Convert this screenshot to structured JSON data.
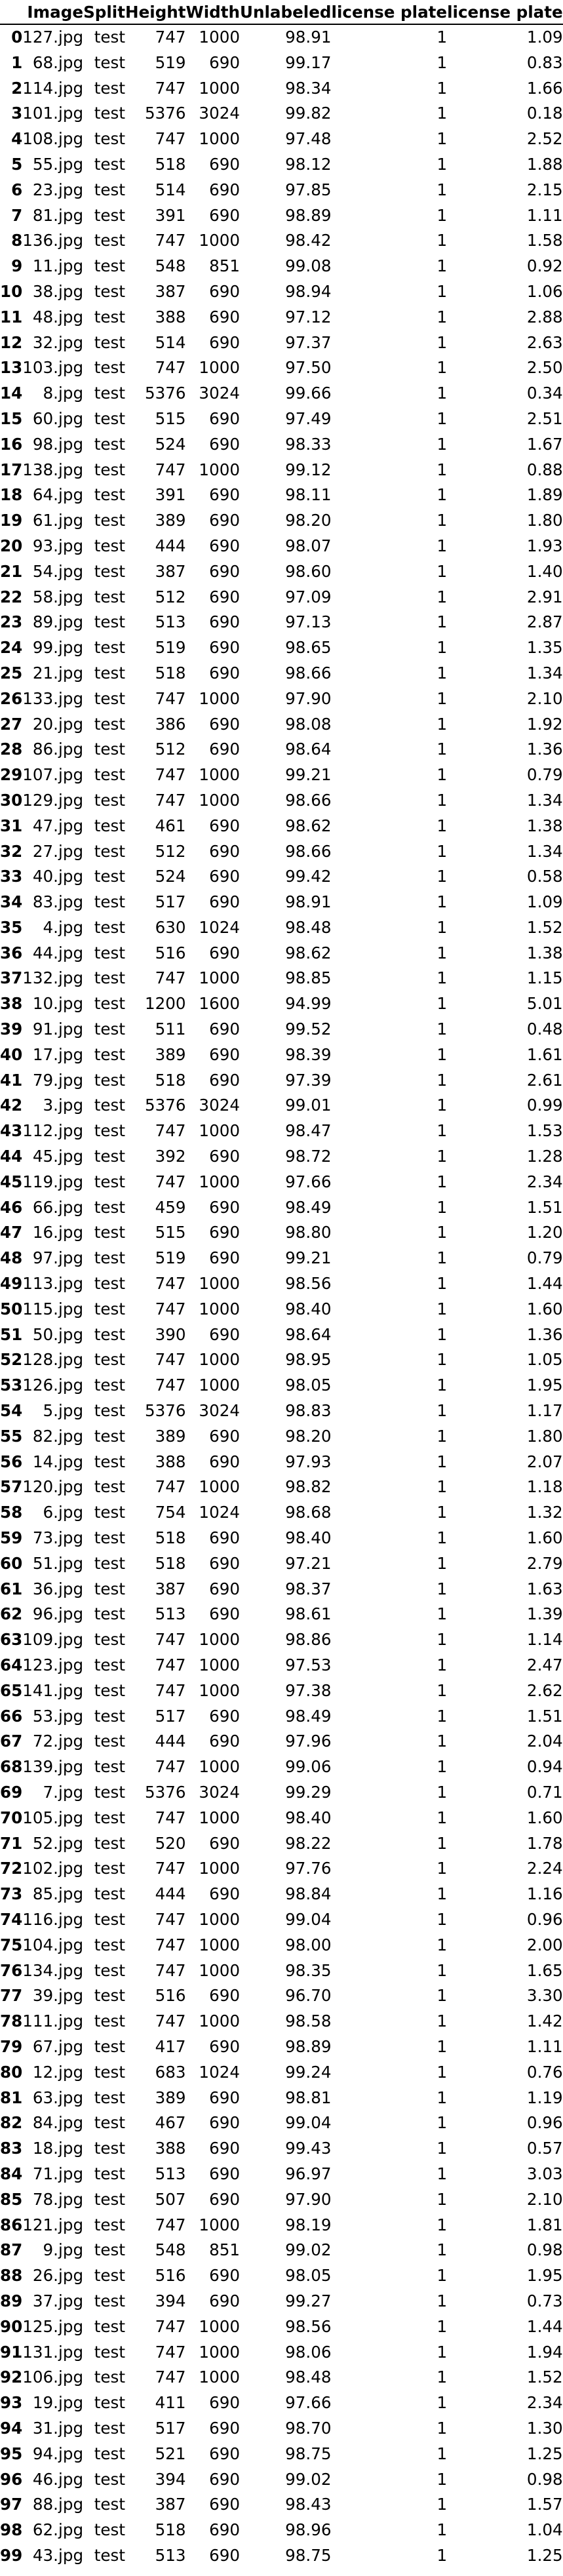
{
  "table": {
    "columns": [
      "",
      "Image",
      "Split",
      "Height",
      "Width",
      "Unlabeled",
      "license plate",
      "license plate"
    ],
    "rows": [
      [
        "0",
        "127.jpg",
        "test",
        "747",
        "1000",
        "98.91",
        "1",
        "1.09"
      ],
      [
        "1",
        "68.jpg",
        "test",
        "519",
        "690",
        "99.17",
        "1",
        "0.83"
      ],
      [
        "2",
        "114.jpg",
        "test",
        "747",
        "1000",
        "98.34",
        "1",
        "1.66"
      ],
      [
        "3",
        "101.jpg",
        "test",
        "5376",
        "3024",
        "99.82",
        "1",
        "0.18"
      ],
      [
        "4",
        "108.jpg",
        "test",
        "747",
        "1000",
        "97.48",
        "1",
        "2.52"
      ],
      [
        "5",
        "55.jpg",
        "test",
        "518",
        "690",
        "98.12",
        "1",
        "1.88"
      ],
      [
        "6",
        "23.jpg",
        "test",
        "514",
        "690",
        "97.85",
        "1",
        "2.15"
      ],
      [
        "7",
        "81.jpg",
        "test",
        "391",
        "690",
        "98.89",
        "1",
        "1.11"
      ],
      [
        "8",
        "136.jpg",
        "test",
        "747",
        "1000",
        "98.42",
        "1",
        "1.58"
      ],
      [
        "9",
        "11.jpg",
        "test",
        "548",
        "851",
        "99.08",
        "1",
        "0.92"
      ],
      [
        "10",
        "38.jpg",
        "test",
        "387",
        "690",
        "98.94",
        "1",
        "1.06"
      ],
      [
        "11",
        "48.jpg",
        "test",
        "388",
        "690",
        "97.12",
        "1",
        "2.88"
      ],
      [
        "12",
        "32.jpg",
        "test",
        "514",
        "690",
        "97.37",
        "1",
        "2.63"
      ],
      [
        "13",
        "103.jpg",
        "test",
        "747",
        "1000",
        "97.50",
        "1",
        "2.50"
      ],
      [
        "14",
        "8.jpg",
        "test",
        "5376",
        "3024",
        "99.66",
        "1",
        "0.34"
      ],
      [
        "15",
        "60.jpg",
        "test",
        "515",
        "690",
        "97.49",
        "1",
        "2.51"
      ],
      [
        "16",
        "98.jpg",
        "test",
        "524",
        "690",
        "98.33",
        "1",
        "1.67"
      ],
      [
        "17",
        "138.jpg",
        "test",
        "747",
        "1000",
        "99.12",
        "1",
        "0.88"
      ],
      [
        "18",
        "64.jpg",
        "test",
        "391",
        "690",
        "98.11",
        "1",
        "1.89"
      ],
      [
        "19",
        "61.jpg",
        "test",
        "389",
        "690",
        "98.20",
        "1",
        "1.80"
      ],
      [
        "20",
        "93.jpg",
        "test",
        "444",
        "690",
        "98.07",
        "1",
        "1.93"
      ],
      [
        "21",
        "54.jpg",
        "test",
        "387",
        "690",
        "98.60",
        "1",
        "1.40"
      ],
      [
        "22",
        "58.jpg",
        "test",
        "512",
        "690",
        "97.09",
        "1",
        "2.91"
      ],
      [
        "23",
        "89.jpg",
        "test",
        "513",
        "690",
        "97.13",
        "1",
        "2.87"
      ],
      [
        "24",
        "99.jpg",
        "test",
        "519",
        "690",
        "98.65",
        "1",
        "1.35"
      ],
      [
        "25",
        "21.jpg",
        "test",
        "518",
        "690",
        "98.66",
        "1",
        "1.34"
      ],
      [
        "26",
        "133.jpg",
        "test",
        "747",
        "1000",
        "97.90",
        "1",
        "2.10"
      ],
      [
        "27",
        "20.jpg",
        "test",
        "386",
        "690",
        "98.08",
        "1",
        "1.92"
      ],
      [
        "28",
        "86.jpg",
        "test",
        "512",
        "690",
        "98.64",
        "1",
        "1.36"
      ],
      [
        "29",
        "107.jpg",
        "test",
        "747",
        "1000",
        "99.21",
        "1",
        "0.79"
      ],
      [
        "30",
        "129.jpg",
        "test",
        "747",
        "1000",
        "98.66",
        "1",
        "1.34"
      ],
      [
        "31",
        "47.jpg",
        "test",
        "461",
        "690",
        "98.62",
        "1",
        "1.38"
      ],
      [
        "32",
        "27.jpg",
        "test",
        "512",
        "690",
        "98.66",
        "1",
        "1.34"
      ],
      [
        "33",
        "40.jpg",
        "test",
        "524",
        "690",
        "99.42",
        "1",
        "0.58"
      ],
      [
        "34",
        "83.jpg",
        "test",
        "517",
        "690",
        "98.91",
        "1",
        "1.09"
      ],
      [
        "35",
        "4.jpg",
        "test",
        "630",
        "1024",
        "98.48",
        "1",
        "1.52"
      ],
      [
        "36",
        "44.jpg",
        "test",
        "516",
        "690",
        "98.62",
        "1",
        "1.38"
      ],
      [
        "37",
        "132.jpg",
        "test",
        "747",
        "1000",
        "98.85",
        "1",
        "1.15"
      ],
      [
        "38",
        "10.jpg",
        "test",
        "1200",
        "1600",
        "94.99",
        "1",
        "5.01"
      ],
      [
        "39",
        "91.jpg",
        "test",
        "511",
        "690",
        "99.52",
        "1",
        "0.48"
      ],
      [
        "40",
        "17.jpg",
        "test",
        "389",
        "690",
        "98.39",
        "1",
        "1.61"
      ],
      [
        "41",
        "79.jpg",
        "test",
        "518",
        "690",
        "97.39",
        "1",
        "2.61"
      ],
      [
        "42",
        "3.jpg",
        "test",
        "5376",
        "3024",
        "99.01",
        "1",
        "0.99"
      ],
      [
        "43",
        "112.jpg",
        "test",
        "747",
        "1000",
        "98.47",
        "1",
        "1.53"
      ],
      [
        "44",
        "45.jpg",
        "test",
        "392",
        "690",
        "98.72",
        "1",
        "1.28"
      ],
      [
        "45",
        "119.jpg",
        "test",
        "747",
        "1000",
        "97.66",
        "1",
        "2.34"
      ],
      [
        "46",
        "66.jpg",
        "test",
        "459",
        "690",
        "98.49",
        "1",
        "1.51"
      ],
      [
        "47",
        "16.jpg",
        "test",
        "515",
        "690",
        "98.80",
        "1",
        "1.20"
      ],
      [
        "48",
        "97.jpg",
        "test",
        "519",
        "690",
        "99.21",
        "1",
        "0.79"
      ],
      [
        "49",
        "113.jpg",
        "test",
        "747",
        "1000",
        "98.56",
        "1",
        "1.44"
      ],
      [
        "50",
        "115.jpg",
        "test",
        "747",
        "1000",
        "98.40",
        "1",
        "1.60"
      ],
      [
        "51",
        "50.jpg",
        "test",
        "390",
        "690",
        "98.64",
        "1",
        "1.36"
      ],
      [
        "52",
        "128.jpg",
        "test",
        "747",
        "1000",
        "98.95",
        "1",
        "1.05"
      ],
      [
        "53",
        "126.jpg",
        "test",
        "747",
        "1000",
        "98.05",
        "1",
        "1.95"
      ],
      [
        "54",
        "5.jpg",
        "test",
        "5376",
        "3024",
        "98.83",
        "1",
        "1.17"
      ],
      [
        "55",
        "82.jpg",
        "test",
        "389",
        "690",
        "98.20",
        "1",
        "1.80"
      ],
      [
        "56",
        "14.jpg",
        "test",
        "388",
        "690",
        "97.93",
        "1",
        "2.07"
      ],
      [
        "57",
        "120.jpg",
        "test",
        "747",
        "1000",
        "98.82",
        "1",
        "1.18"
      ],
      [
        "58",
        "6.jpg",
        "test",
        "754",
        "1024",
        "98.68",
        "1",
        "1.32"
      ],
      [
        "59",
        "73.jpg",
        "test",
        "518",
        "690",
        "98.40",
        "1",
        "1.60"
      ],
      [
        "60",
        "51.jpg",
        "test",
        "518",
        "690",
        "97.21",
        "1",
        "2.79"
      ],
      [
        "61",
        "36.jpg",
        "test",
        "387",
        "690",
        "98.37",
        "1",
        "1.63"
      ],
      [
        "62",
        "96.jpg",
        "test",
        "513",
        "690",
        "98.61",
        "1",
        "1.39"
      ],
      [
        "63",
        "109.jpg",
        "test",
        "747",
        "1000",
        "98.86",
        "1",
        "1.14"
      ],
      [
        "64",
        "123.jpg",
        "test",
        "747",
        "1000",
        "97.53",
        "1",
        "2.47"
      ],
      [
        "65",
        "141.jpg",
        "test",
        "747",
        "1000",
        "97.38",
        "1",
        "2.62"
      ],
      [
        "66",
        "53.jpg",
        "test",
        "517",
        "690",
        "98.49",
        "1",
        "1.51"
      ],
      [
        "67",
        "72.jpg",
        "test",
        "444",
        "690",
        "97.96",
        "1",
        "2.04"
      ],
      [
        "68",
        "139.jpg",
        "test",
        "747",
        "1000",
        "99.06",
        "1",
        "0.94"
      ],
      [
        "69",
        "7.jpg",
        "test",
        "5376",
        "3024",
        "99.29",
        "1",
        "0.71"
      ],
      [
        "70",
        "105.jpg",
        "test",
        "747",
        "1000",
        "98.40",
        "1",
        "1.60"
      ],
      [
        "71",
        "52.jpg",
        "test",
        "520",
        "690",
        "98.22",
        "1",
        "1.78"
      ],
      [
        "72",
        "102.jpg",
        "test",
        "747",
        "1000",
        "97.76",
        "1",
        "2.24"
      ],
      [
        "73",
        "85.jpg",
        "test",
        "444",
        "690",
        "98.84",
        "1",
        "1.16"
      ],
      [
        "74",
        "116.jpg",
        "test",
        "747",
        "1000",
        "99.04",
        "1",
        "0.96"
      ],
      [
        "75",
        "104.jpg",
        "test",
        "747",
        "1000",
        "98.00",
        "1",
        "2.00"
      ],
      [
        "76",
        "134.jpg",
        "test",
        "747",
        "1000",
        "98.35",
        "1",
        "1.65"
      ],
      [
        "77",
        "39.jpg",
        "test",
        "516",
        "690",
        "96.70",
        "1",
        "3.30"
      ],
      [
        "78",
        "111.jpg",
        "test",
        "747",
        "1000",
        "98.58",
        "1",
        "1.42"
      ],
      [
        "79",
        "67.jpg",
        "test",
        "417",
        "690",
        "98.89",
        "1",
        "1.11"
      ],
      [
        "80",
        "12.jpg",
        "test",
        "683",
        "1024",
        "99.24",
        "1",
        "0.76"
      ],
      [
        "81",
        "63.jpg",
        "test",
        "389",
        "690",
        "98.81",
        "1",
        "1.19"
      ],
      [
        "82",
        "84.jpg",
        "test",
        "467",
        "690",
        "99.04",
        "1",
        "0.96"
      ],
      [
        "83",
        "18.jpg",
        "test",
        "388",
        "690",
        "99.43",
        "1",
        "0.57"
      ],
      [
        "84",
        "71.jpg",
        "test",
        "513",
        "690",
        "96.97",
        "1",
        "3.03"
      ],
      [
        "85",
        "78.jpg",
        "test",
        "507",
        "690",
        "97.90",
        "1",
        "2.10"
      ],
      [
        "86",
        "121.jpg",
        "test",
        "747",
        "1000",
        "98.19",
        "1",
        "1.81"
      ],
      [
        "87",
        "9.jpg",
        "test",
        "548",
        "851",
        "99.02",
        "1",
        "0.98"
      ],
      [
        "88",
        "26.jpg",
        "test",
        "516",
        "690",
        "98.05",
        "1",
        "1.95"
      ],
      [
        "89",
        "37.jpg",
        "test",
        "394",
        "690",
        "99.27",
        "1",
        "0.73"
      ],
      [
        "90",
        "125.jpg",
        "test",
        "747",
        "1000",
        "98.56",
        "1",
        "1.44"
      ],
      [
        "91",
        "131.jpg",
        "test",
        "747",
        "1000",
        "98.06",
        "1",
        "1.94"
      ],
      [
        "92",
        "106.jpg",
        "test",
        "747",
        "1000",
        "98.48",
        "1",
        "1.52"
      ],
      [
        "93",
        "19.jpg",
        "test",
        "411",
        "690",
        "97.66",
        "1",
        "2.34"
      ],
      [
        "94",
        "31.jpg",
        "test",
        "517",
        "690",
        "98.70",
        "1",
        "1.30"
      ],
      [
        "95",
        "94.jpg",
        "test",
        "521",
        "690",
        "98.75",
        "1",
        "1.25"
      ],
      [
        "96",
        "46.jpg",
        "test",
        "394",
        "690",
        "99.02",
        "1",
        "0.98"
      ],
      [
        "97",
        "88.jpg",
        "test",
        "387",
        "690",
        "98.43",
        "1",
        "1.57"
      ],
      [
        "98",
        "62.jpg",
        "test",
        "518",
        "690",
        "98.96",
        "1",
        "1.04"
      ],
      [
        "99",
        "43.jpg",
        "test",
        "513",
        "690",
        "98.75",
        "1",
        "1.25"
      ]
    ]
  }
}
